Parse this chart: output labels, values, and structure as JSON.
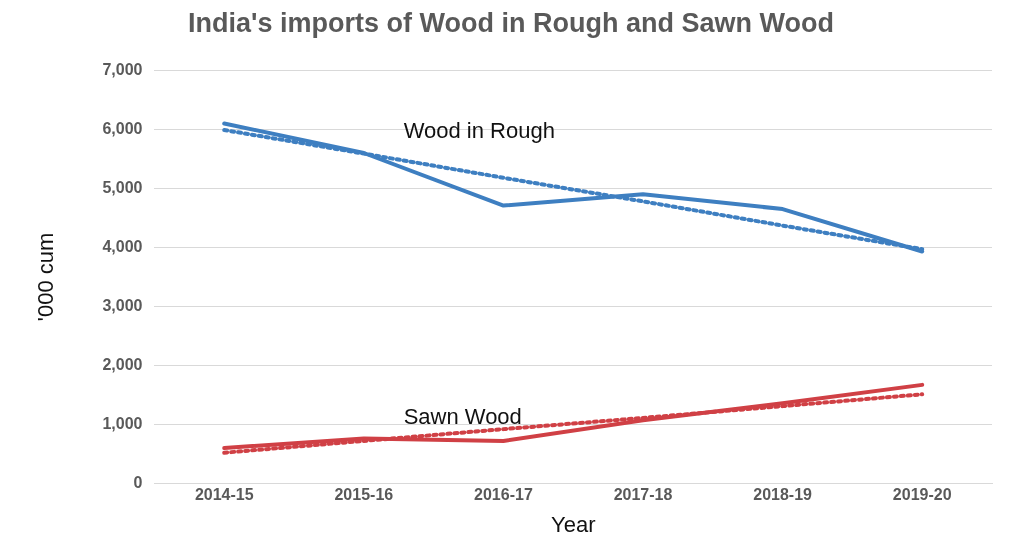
{
  "chart_data": {
    "type": "line",
    "title": "India's imports of Wood in Rough and Sawn Wood",
    "xlabel": "Year",
    "ylabel": "'000 cum",
    "categories": [
      "2014-15",
      "2015-16",
      "2016-17",
      "2017-18",
      "2018-19",
      "2019-20"
    ],
    "series": [
      {
        "name": "Wood in Rough",
        "color": "#3e7fc1",
        "values": [
          6100,
          5600,
          4710,
          4900,
          4650,
          3930
        ]
      },
      {
        "color": "#3e7fc1",
        "line_style": "dotted",
        "values": [
          5990,
          5590,
          5180,
          4780,
          4370,
          3970
        ]
      },
      {
        "name": "Sawn Wood",
        "color": "#d04045",
        "values": [
          600,
          760,
          720,
          1070,
          1360,
          1670
        ]
      },
      {
        "color": "#d04045",
        "line_style": "dotted",
        "values": [
          520,
          720,
          920,
          1110,
          1310,
          1510
        ]
      }
    ],
    "ylim": [
      0,
      7000
    ],
    "yticks": [
      {
        "value": 0,
        "label": "0"
      },
      {
        "value": 1000,
        "label": "1,000"
      },
      {
        "value": 2000,
        "label": "2,000"
      },
      {
        "value": 3000,
        "label": "3,000"
      },
      {
        "value": 4000,
        "label": "4,000"
      },
      {
        "value": 5000,
        "label": "5,000"
      },
      {
        "value": 6000,
        "label": "6,000"
      },
      {
        "value": 7000,
        "label": "7,000"
      }
    ],
    "grid": "y",
    "legend": false,
    "marker": "none"
  }
}
